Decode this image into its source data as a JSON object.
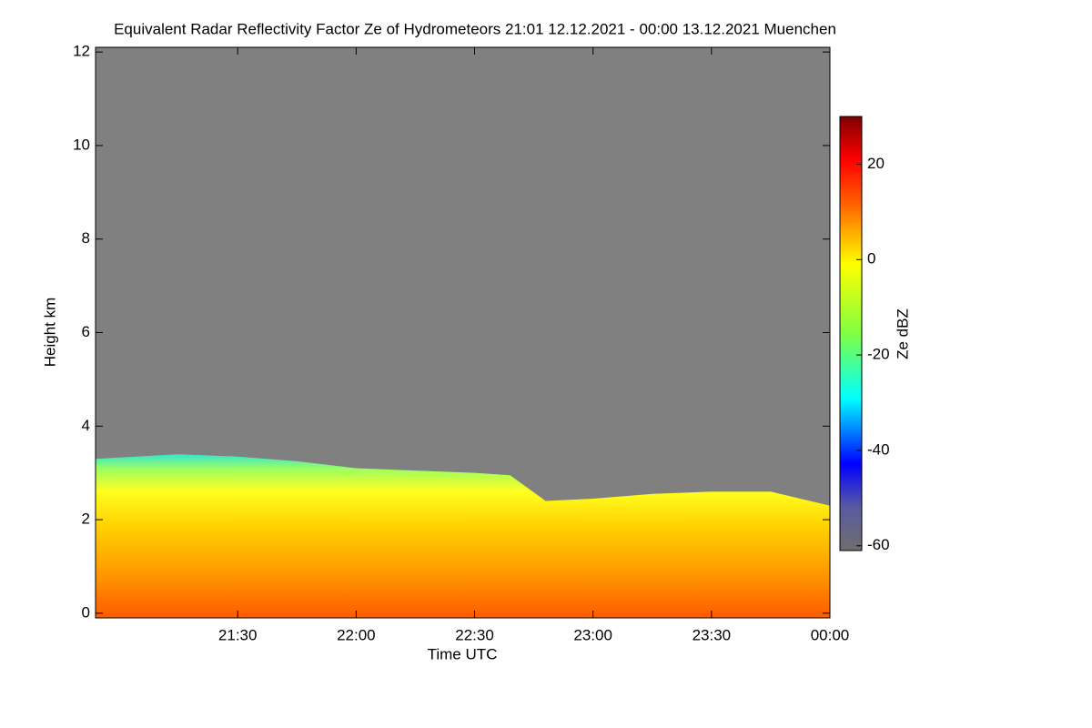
{
  "chart_data": {
    "type": "area",
    "title": "Equivalent Radar Reflectivity Factor Ze of Hydrometeors   21:01 12.12.2021 - 00:00 13.12.2021 Muenchen",
    "x_label": "Time UTC",
    "y_label": "Height km",
    "x": [
      20.9,
      21.25,
      21.5,
      21.75,
      22.0,
      22.25,
      22.5,
      22.65,
      22.8,
      23.0,
      23.25,
      23.5,
      23.75,
      24.0
    ],
    "values": [
      3.3,
      3.4,
      3.35,
      3.25,
      3.1,
      3.05,
      3.0,
      2.95,
      2.4,
      2.45,
      2.55,
      2.6,
      2.6,
      2.3
    ],
    "xlim": [
      20.9,
      24.0
    ],
    "xticks": [
      {
        "value": 21.5,
        "label": "21:30"
      },
      {
        "value": 22.0,
        "label": "22:00"
      },
      {
        "value": 22.5,
        "label": "22:30"
      },
      {
        "value": 23.0,
        "label": "23:00"
      },
      {
        "value": 23.5,
        "label": "23:30"
      },
      {
        "value": 24.0,
        "label": "00:00"
      }
    ],
    "ylim": [
      -0.1,
      12.1
    ],
    "yticks": [
      0,
      2,
      4,
      6,
      8,
      10,
      12
    ],
    "background_color": "#808080",
    "colorbar": {
      "label": "Ze dBZ",
      "lim": [
        -61,
        30
      ],
      "ticks": [
        -60,
        -40,
        -20,
        0,
        20
      ]
    }
  }
}
